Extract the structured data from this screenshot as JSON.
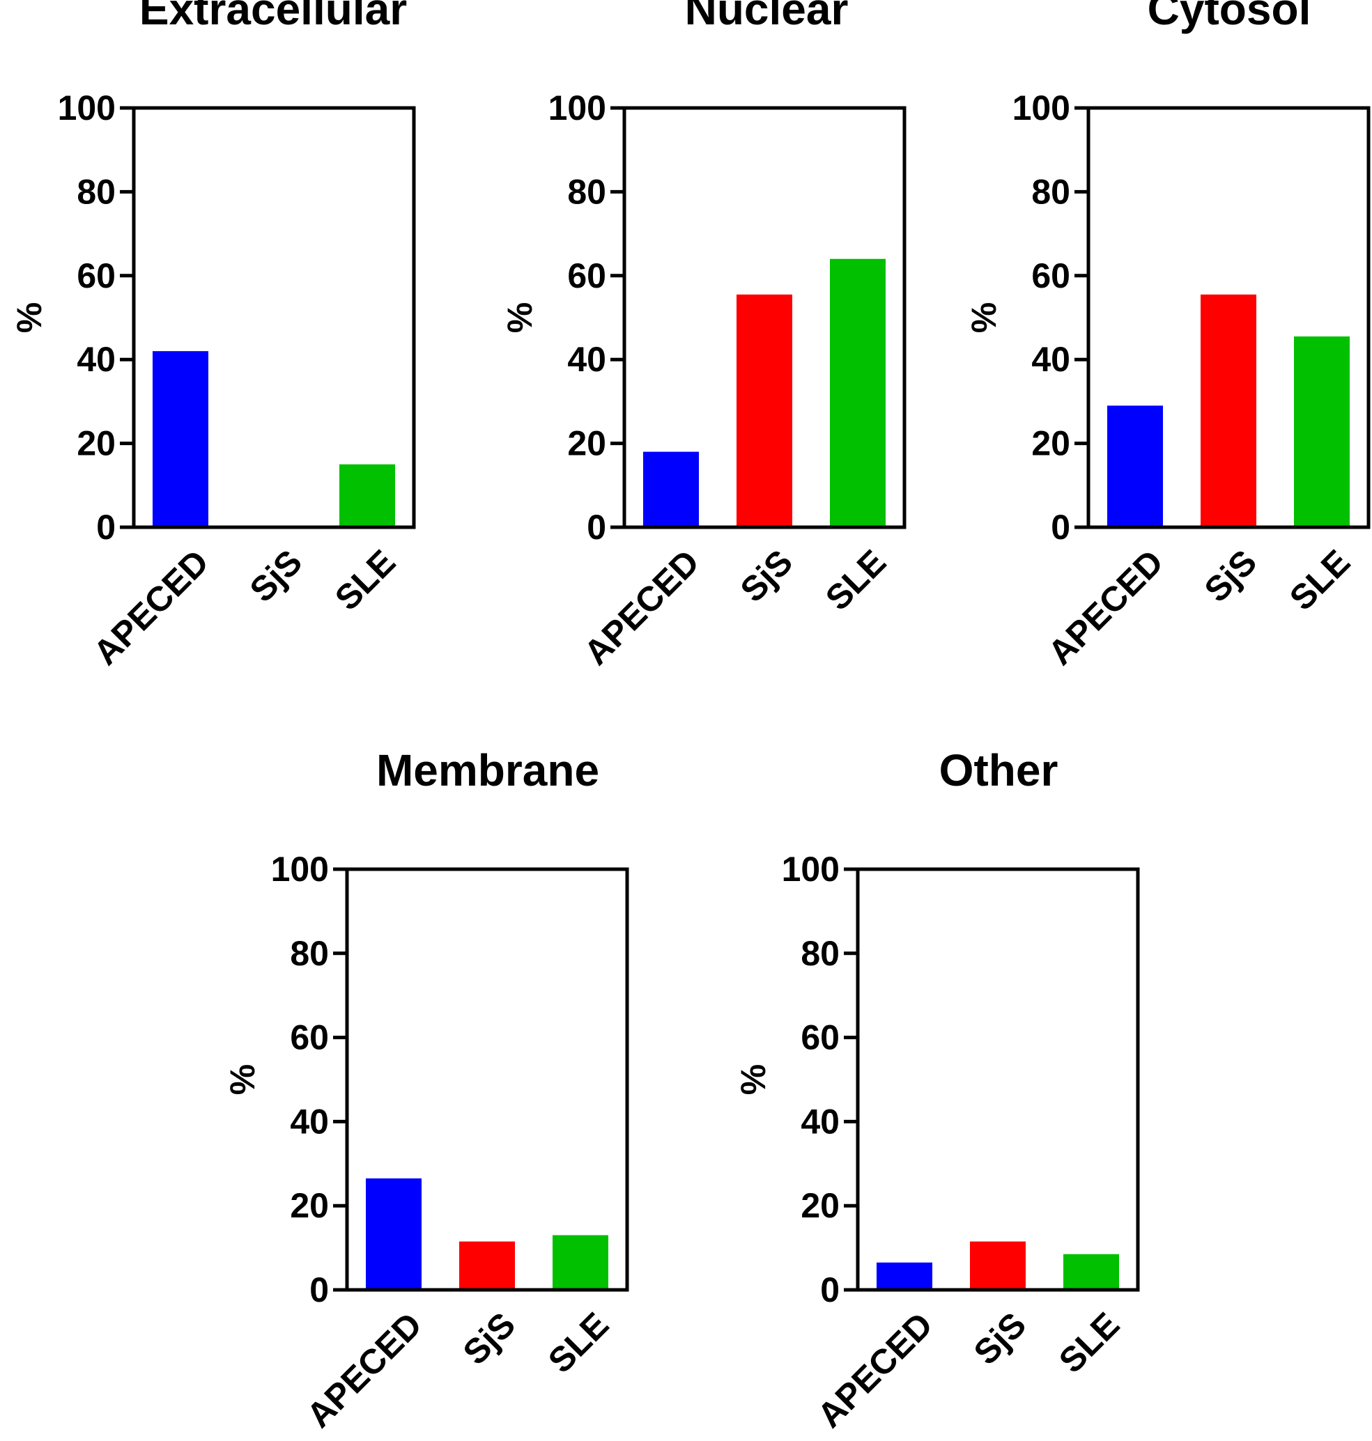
{
  "figure": {
    "category_colors": {
      "APECED": "#0000ff",
      "SjS": "#ff0000",
      "SLE": "#00c000"
    }
  },
  "chart_data": [
    {
      "type": "bar",
      "title": "Extracellular",
      "ylabel": "%",
      "xlabel": "",
      "categories": [
        "APECED",
        "SjS",
        "SLE"
      ],
      "values": [
        42,
        0,
        15
      ],
      "ylim": [
        0,
        100
      ],
      "yticks": [
        0,
        20,
        40,
        60,
        80,
        100
      ],
      "grid": false,
      "legend": "none"
    },
    {
      "type": "bar",
      "title": "Nuclear",
      "ylabel": "%",
      "xlabel": "",
      "categories": [
        "APECED",
        "SjS",
        "SLE"
      ],
      "values": [
        18,
        55.5,
        64
      ],
      "ylim": [
        0,
        100
      ],
      "yticks": [
        0,
        20,
        40,
        60,
        80,
        100
      ],
      "grid": false,
      "legend": "none"
    },
    {
      "type": "bar",
      "title": "Cytosol",
      "ylabel": "%",
      "xlabel": "",
      "categories": [
        "APECED",
        "SjS",
        "SLE"
      ],
      "values": [
        29,
        55.5,
        45.5
      ],
      "ylim": [
        0,
        100
      ],
      "yticks": [
        0,
        20,
        40,
        60,
        80,
        100
      ],
      "grid": false,
      "legend": "none"
    },
    {
      "type": "bar",
      "title": "Membrane",
      "ylabel": "%",
      "xlabel": "",
      "categories": [
        "APECED",
        "SjS",
        "SLE"
      ],
      "values": [
        26.5,
        11.5,
        13
      ],
      "ylim": [
        0,
        100
      ],
      "yticks": [
        0,
        20,
        40,
        60,
        80,
        100
      ],
      "grid": false,
      "legend": "none"
    },
    {
      "type": "bar",
      "title": "Other",
      "ylabel": "%",
      "xlabel": "",
      "categories": [
        "APECED",
        "SjS",
        "SLE"
      ],
      "values": [
        6.5,
        11.5,
        8.5
      ],
      "ylim": [
        0,
        100
      ],
      "yticks": [
        0,
        20,
        40,
        60,
        80,
        100
      ],
      "grid": false,
      "legend": "none"
    }
  ]
}
